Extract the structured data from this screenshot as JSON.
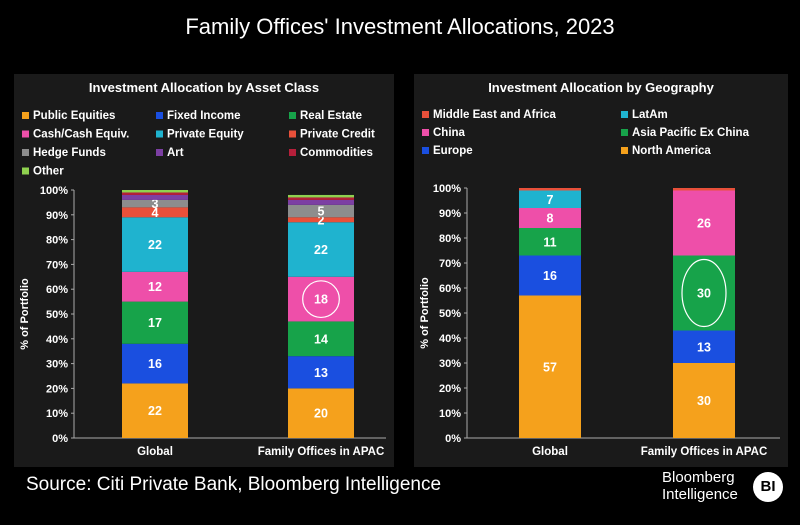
{
  "title": "Family Offices' Investment Allocations, 2023",
  "source": "Source: Citi Private Bank, Bloomberg Intelligence",
  "brand": {
    "line1": "Bloomberg",
    "line2": "Intelligence",
    "logo": "BI"
  },
  "chart_data": [
    {
      "type": "bar",
      "stacked": true,
      "title": "Investment Allocation by Asset Class",
      "ylabel": "% of Portfolio",
      "xlabel": "",
      "ylim": [
        0,
        100
      ],
      "yticks": [
        "0%",
        "10%",
        "20%",
        "30%",
        "40%",
        "50%",
        "60%",
        "70%",
        "80%",
        "90%",
        "100%"
      ],
      "categories": [
        "Global",
        "Family Offices in APAC"
      ],
      "legend_position": "top",
      "highlight": {
        "series": "Cash/Cash Equiv.",
        "category": "Family Offices in APAC"
      },
      "series": [
        {
          "name": "Public Equities",
          "color": "#f5a11c",
          "values": [
            22,
            20
          ],
          "labels": [
            "22",
            "20"
          ]
        },
        {
          "name": "Fixed Income",
          "color": "#1a4fe0",
          "values": [
            16,
            13
          ],
          "labels": [
            "16",
            "13"
          ]
        },
        {
          "name": "Real Estate",
          "color": "#17a34a",
          "values": [
            17,
            14
          ],
          "labels": [
            "17",
            "14"
          ]
        },
        {
          "name": "Cash/Cash Equiv.",
          "color": "#ee4fa9",
          "values": [
            12,
            18
          ],
          "labels": [
            "12",
            "18"
          ]
        },
        {
          "name": "Private Equity",
          "color": "#1fb3cf",
          "values": [
            22,
            22
          ],
          "labels": [
            "22",
            "22"
          ]
        },
        {
          "name": "Private Credit",
          "color": "#e8503a",
          "values": [
            4,
            2
          ],
          "labels": [
            "4",
            "2"
          ]
        },
        {
          "name": "Hedge Funds",
          "color": "#8d8d8d",
          "values": [
            3,
            5
          ],
          "labels": [
            "3",
            "5"
          ]
        },
        {
          "name": "Art",
          "color": "#7c3fa3",
          "values": [
            2,
            2
          ],
          "labels": [
            "",
            ""
          ]
        },
        {
          "name": "Commodities",
          "color": "#b51f3a",
          "values": [
            1,
            1
          ],
          "labels": [
            "",
            ""
          ]
        },
        {
          "name": "Other",
          "color": "#8fd14f",
          "values": [
            1,
            1
          ],
          "labels": [
            "",
            ""
          ]
        }
      ]
    },
    {
      "type": "bar",
      "stacked": true,
      "title": "Investment Allocation by Geography",
      "ylabel": "% of Portfolio",
      "xlabel": "",
      "ylim": [
        0,
        100
      ],
      "yticks": [
        "0%",
        "10%",
        "20%",
        "30%",
        "40%",
        "50%",
        "60%",
        "70%",
        "80%",
        "90%",
        "100%"
      ],
      "categories": [
        "Global",
        "Family Offices in APAC"
      ],
      "legend_position": "top",
      "highlight": {
        "series": "Asia Pacific Ex China",
        "category": "Family Offices in APAC"
      },
      "series": [
        {
          "name": "North America",
          "color": "#f5a11c",
          "values": [
            57,
            30
          ],
          "labels": [
            "57",
            "30"
          ]
        },
        {
          "name": "Europe",
          "color": "#1a4fe0",
          "values": [
            16,
            13
          ],
          "labels": [
            "16",
            "13"
          ]
        },
        {
          "name": "Asia Pacific Ex China",
          "color": "#17a34a",
          "values": [
            11,
            30
          ],
          "labels": [
            "11",
            "30"
          ]
        },
        {
          "name": "China",
          "color": "#ee4fa9",
          "values": [
            8,
            26
          ],
          "labels": [
            "8",
            "26"
          ]
        },
        {
          "name": "LatAm",
          "color": "#1fb3cf",
          "values": [
            7,
            0
          ],
          "labels": [
            "7",
            ""
          ]
        },
        {
          "name": "Middle East and Africa",
          "color": "#e8503a",
          "values": [
            1,
            1
          ],
          "labels": [
            "",
            ""
          ]
        }
      ],
      "legend_order": [
        "Middle East and Africa",
        "LatAm",
        "China",
        "Asia Pacific Ex China",
        "Europe",
        "North America"
      ]
    }
  ]
}
